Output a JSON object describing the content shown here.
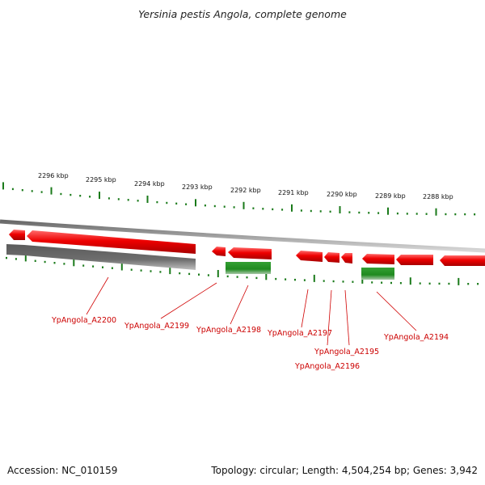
{
  "title": "Yersinia pestis Angola, complete genome",
  "footer": {
    "accession": "Accession: NC_010159",
    "summary": "Topology: circular; Length: 4,504,254 bp; Genes: 3,942"
  },
  "ruler_labels": [
    "2296 kbp",
    "2295 kbp",
    "2294 kbp",
    "2293 kbp",
    "2292 kbp",
    "2291 kbp",
    "2290 kbp",
    "2289 kbp",
    "2288 kbp"
  ],
  "gene_labels": [
    "YpAngola_A2200",
    "YpAngola_A2199",
    "YpAngola_A2198",
    "YpAngola_A2197",
    "YpAngola_A2195",
    "YpAngola_A2196",
    "YpAngola_A2194"
  ],
  "colors": {
    "gene_red": "#e60000",
    "gene_green": "#1f8a1f",
    "gene_gray": "#707070",
    "tick_green": "#1a7a1a",
    "backbone": "#8c8c8c",
    "label_red": "#cc0000"
  }
}
